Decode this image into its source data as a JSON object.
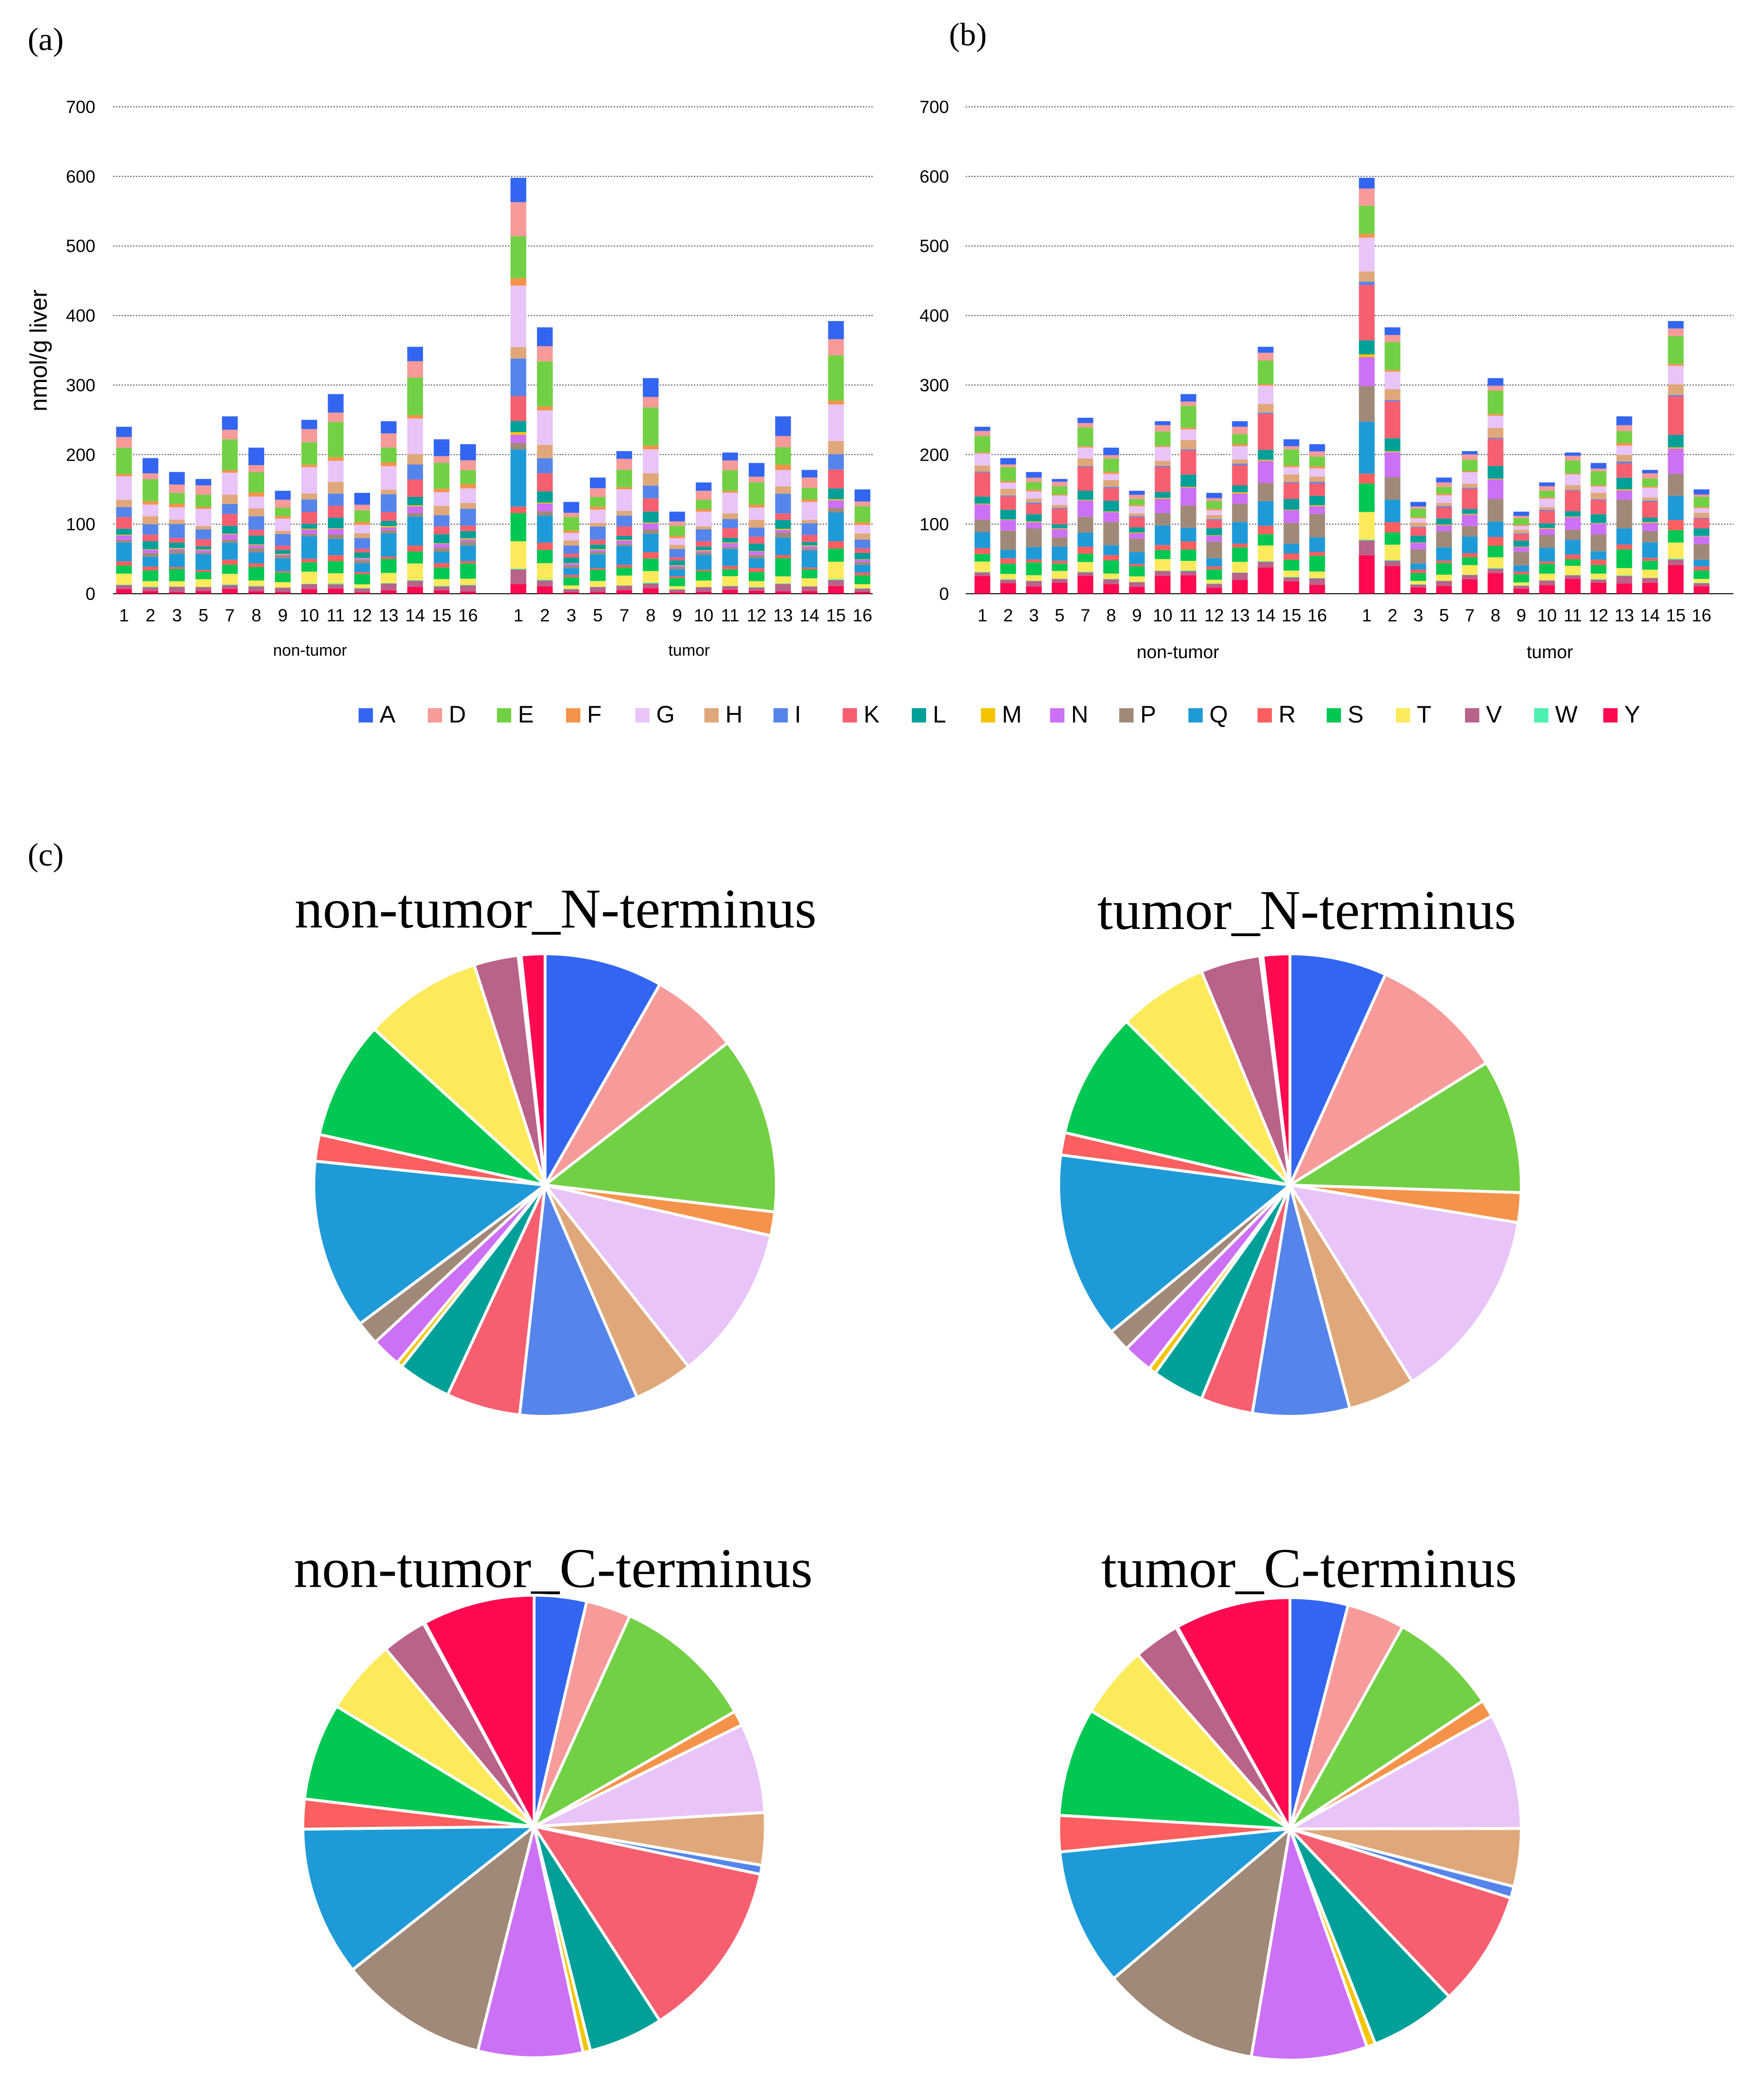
{
  "panels": {
    "a": "(a)",
    "b": "(b)",
    "c": "(c)"
  },
  "legend": [
    {
      "key": "A",
      "label": "A",
      "color": "#3366f0"
    },
    {
      "key": "D",
      "label": "D",
      "color": "#f79a9a"
    },
    {
      "key": "E",
      "label": "E",
      "color": "#72d044"
    },
    {
      "key": "F",
      "label": "F",
      "color": "#f5934a"
    },
    {
      "key": "G",
      "label": "G",
      "color": "#e8c4f8"
    },
    {
      "key": "H",
      "label": "H",
      "color": "#e0a87a"
    },
    {
      "key": "I",
      "label": "I",
      "color": "#5585ea"
    },
    {
      "key": "K",
      "label": "K",
      "color": "#f65f70"
    },
    {
      "key": "L",
      "label": "L",
      "color": "#00a099"
    },
    {
      "key": "M",
      "label": "M",
      "color": "#f5c400"
    },
    {
      "key": "N",
      "label": "N",
      "color": "#cc70f5"
    },
    {
      "key": "P",
      "label": "P",
      "color": "#a08978"
    },
    {
      "key": "Q",
      "label": "Q",
      "color": "#1f9ad8"
    },
    {
      "key": "R",
      "label": "R",
      "color": "#fb5f5f"
    },
    {
      "key": "S",
      "label": "S",
      "color": "#00c853"
    },
    {
      "key": "T",
      "label": "T",
      "color": "#fcea5a"
    },
    {
      "key": "V",
      "label": "V",
      "color": "#b9628a"
    },
    {
      "key": "W",
      "label": "W",
      "color": "#4df0b0"
    },
    {
      "key": "Y",
      "label": "Y",
      "color": "#ff0a50"
    }
  ],
  "chart_data": [
    {
      "id": "a",
      "type": "bar",
      "stacked": true,
      "ylabel": "nmol/g liver",
      "ylim": [
        0,
        700
      ],
      "yticks": [
        0,
        100,
        200,
        300,
        400,
        500,
        600,
        700
      ],
      "categories": [
        "1",
        "2",
        "3",
        "5",
        "7",
        "8",
        "9",
        "10",
        "11",
        "12",
        "13",
        "14",
        "15",
        "16",
        "1",
        "2",
        "3",
        "5",
        "7",
        "8",
        "9",
        "10",
        "11",
        "12",
        "13",
        "14",
        "15",
        "16"
      ],
      "groups": [
        {
          "label": "non-tumor",
          "count": 14
        },
        {
          "label": "tumor",
          "count": 14
        }
      ],
      "totals": [
        240,
        195,
        175,
        165,
        255,
        210,
        148,
        250,
        287,
        145,
        248,
        355,
        222,
        215,
        598,
        383,
        132,
        167,
        205,
        310,
        118,
        160,
        203,
        188,
        255,
        178,
        392,
        150
      ],
      "composition": [
        [
          "Y",
          2
        ],
        [
          "V",
          3
        ],
        [
          "W",
          0.3
        ],
        [
          "T",
          5
        ],
        [
          "S",
          7
        ],
        [
          "R",
          2
        ],
        [
          "Q",
          10
        ],
        [
          "P",
          2
        ],
        [
          "N",
          2
        ],
        [
          "M",
          0.5
        ],
        [
          "L",
          4
        ],
        [
          "K",
          5
        ],
        [
          "I",
          8
        ],
        [
          "H",
          4
        ],
        [
          "G",
          11
        ],
        [
          "F",
          2
        ],
        [
          "E",
          12
        ],
        [
          "D",
          6
        ],
        [
          "A",
          8
        ]
      ]
    },
    {
      "id": "b",
      "type": "bar",
      "stacked": true,
      "ylabel": "",
      "ylim": [
        0,
        700
      ],
      "yticks": [
        0,
        100,
        200,
        300,
        400,
        500,
        600,
        700
      ],
      "categories": [
        "1",
        "2",
        "3",
        "5",
        "7",
        "8",
        "9",
        "10",
        "11",
        "12",
        "13",
        "14",
        "15",
        "16",
        "1",
        "2",
        "3",
        "5",
        "7",
        "8",
        "9",
        "10",
        "11",
        "12",
        "13",
        "14",
        "15",
        "16"
      ],
      "groups": [
        {
          "label": "non-tumor",
          "count": 14
        },
        {
          "label": "tumor",
          "count": 14
        }
      ],
      "totals": [
        240,
        195,
        175,
        165,
        253,
        210,
        148,
        248,
        287,
        145,
        248,
        355,
        222,
        215,
        598,
        383,
        132,
        167,
        205,
        310,
        118,
        160,
        203,
        188,
        255,
        178,
        392,
        150
      ],
      "composition": [
        [
          "Y",
          8
        ],
        [
          "V",
          3
        ],
        [
          "W",
          0.3
        ],
        [
          "T",
          5
        ],
        [
          "S",
          7
        ],
        [
          "R",
          3
        ],
        [
          "Q",
          9
        ],
        [
          "P",
          11
        ],
        [
          "N",
          7
        ],
        [
          "M",
          0.5
        ],
        [
          "L",
          5
        ],
        [
          "K",
          11
        ],
        [
          "I",
          0.7
        ],
        [
          "H",
          3.5
        ],
        [
          "G",
          6
        ],
        [
          "F",
          1
        ],
        [
          "E",
          8
        ],
        [
          "D",
          3
        ],
        [
          "A",
          3.5
        ]
      ]
    },
    {
      "id": "c1",
      "type": "pie",
      "title": "non-tumor_N-terminus",
      "slices": [
        {
          "label": "A",
          "value": 8
        },
        {
          "label": "D",
          "value": 6
        },
        {
          "label": "E",
          "value": 12
        },
        {
          "label": "F",
          "value": 1.6
        },
        {
          "label": "G",
          "value": 10.5
        },
        {
          "label": "H",
          "value": 4
        },
        {
          "label": "I",
          "value": 8
        },
        {
          "label": "K",
          "value": 5
        },
        {
          "label": "L",
          "value": 3.6
        },
        {
          "label": "M",
          "value": 0.4
        },
        {
          "label": "N",
          "value": 2
        },
        {
          "label": "P",
          "value": 1.6
        },
        {
          "label": "Q",
          "value": 11.5
        },
        {
          "label": "R",
          "value": 1.8
        },
        {
          "label": "S",
          "value": 8
        },
        {
          "label": "T",
          "value": 8
        },
        {
          "label": "V",
          "value": 3
        },
        {
          "label": "W",
          "value": 0.2
        },
        {
          "label": "Y",
          "value": 1.6
        }
      ]
    },
    {
      "id": "c2",
      "type": "pie",
      "title": "tumor_N-terminus",
      "slices": [
        {
          "label": "A",
          "value": 6.5
        },
        {
          "label": "D",
          "value": 9
        },
        {
          "label": "E",
          "value": 9
        },
        {
          "label": "F",
          "value": 2
        },
        {
          "label": "G",
          "value": 13
        },
        {
          "label": "H",
          "value": 4.5
        },
        {
          "label": "I",
          "value": 6.5
        },
        {
          "label": "K",
          "value": 3.5
        },
        {
          "label": "L",
          "value": 3.5
        },
        {
          "label": "M",
          "value": 0.5
        },
        {
          "label": "N",
          "value": 2
        },
        {
          "label": "P",
          "value": 1.5
        },
        {
          "label": "Q",
          "value": 12.5
        },
        {
          "label": "R",
          "value": 1.5
        },
        {
          "label": "S",
          "value": 8.5
        },
        {
          "label": "T",
          "value": 6
        },
        {
          "label": "V",
          "value": 4
        },
        {
          "label": "W",
          "value": 0.2
        },
        {
          "label": "Y",
          "value": 1.8
        }
      ]
    },
    {
      "id": "c3",
      "type": "pie",
      "title": "non-tumor_C-terminus",
      "slices": [
        {
          "label": "A",
          "value": 3.5
        },
        {
          "label": "D",
          "value": 3
        },
        {
          "label": "E",
          "value": 9.5
        },
        {
          "label": "F",
          "value": 1
        },
        {
          "label": "G",
          "value": 6
        },
        {
          "label": "H",
          "value": 3.5
        },
        {
          "label": "I",
          "value": 0.6
        },
        {
          "label": "K",
          "value": 12
        },
        {
          "label": "L",
          "value": 5
        },
        {
          "label": "M",
          "value": 0.5
        },
        {
          "label": "N",
          "value": 7
        },
        {
          "label": "P",
          "value": 10
        },
        {
          "label": "Q",
          "value": 10
        },
        {
          "label": "R",
          "value": 2
        },
        {
          "label": "S",
          "value": 6.5
        },
        {
          "label": "T",
          "value": 5
        },
        {
          "label": "V",
          "value": 3
        },
        {
          "label": "W",
          "value": 0.1
        },
        {
          "label": "Y",
          "value": 7.5
        }
      ]
    },
    {
      "id": "c4",
      "type": "pie",
      "title": "tumor_C-terminus",
      "slices": [
        {
          "label": "A",
          "value": 4
        },
        {
          "label": "D",
          "value": 4
        },
        {
          "label": "E",
          "value": 7.5
        },
        {
          "label": "F",
          "value": 1.2
        },
        {
          "label": "G",
          "value": 8
        },
        {
          "label": "H",
          "value": 4
        },
        {
          "label": "I",
          "value": 0.8
        },
        {
          "label": "K",
          "value": 8
        },
        {
          "label": "L",
          "value": 6
        },
        {
          "label": "M",
          "value": 0.6
        },
        {
          "label": "N",
          "value": 8
        },
        {
          "label": "P",
          "value": 11
        },
        {
          "label": "Q",
          "value": 9.5
        },
        {
          "label": "R",
          "value": 2.5
        },
        {
          "label": "S",
          "value": 7.5
        },
        {
          "label": "T",
          "value": 5
        },
        {
          "label": "V",
          "value": 3.2
        },
        {
          "label": "W",
          "value": 0.1
        },
        {
          "label": "Y",
          "value": 8
        }
      ]
    }
  ]
}
